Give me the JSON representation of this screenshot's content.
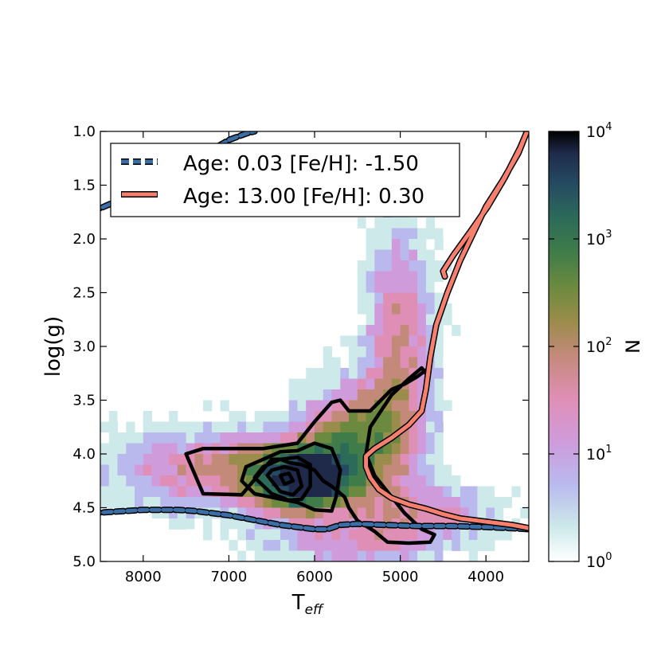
{
  "chart_data": {
    "type": "heatmap",
    "title": "",
    "xlabel_main": "T",
    "xlabel_sub": "eff",
    "ylabel": "log(g)",
    "xlim": [
      8500,
      3500
    ],
    "ylim": [
      5.0,
      1.0
    ],
    "y_inverted": true,
    "x_inverted": true,
    "x_ticks": [
      "8000",
      "7000",
      "6000",
      "5000",
      "4000"
    ],
    "x_tick_values": [
      8000,
      7000,
      6000,
      5000,
      4000
    ],
    "y_ticks": [
      "1.0",
      "1.5",
      "2.0",
      "2.5",
      "3.0",
      "3.5",
      "4.0",
      "4.5",
      "5.0"
    ],
    "y_tick_values": [
      1.0,
      1.5,
      2.0,
      2.5,
      3.0,
      3.5,
      4.0,
      4.5,
      5.0
    ],
    "grid": false,
    "legend_placement": "upper-left",
    "colorbar": {
      "label": "N",
      "scale": "log",
      "range": [
        1,
        10000
      ],
      "tick_base": "10",
      "tick_exponents": [
        "0",
        "1",
        "2",
        "3",
        "4"
      ],
      "colormap": [
        "#ffffff",
        "#cde9ea",
        "#b9b9ee",
        "#cf9bdb",
        "#df8fb5",
        "#c38a7a",
        "#9a8c4a",
        "#6b8a3f",
        "#3f7c49",
        "#2c6a5a",
        "#254a62",
        "#1f2a4a",
        "#000000"
      ]
    },
    "density_regions": [
      {
        "name": "main-sequence-turnoff-core",
        "teff_range": [
          6600,
          5600
        ],
        "logg_range": [
          3.9,
          4.5
        ],
        "level": "1000+"
      },
      {
        "name": "subgiant-branch",
        "teff_range": [
          5900,
          4800
        ],
        "logg_range": [
          3.3,
          4.0
        ],
        "level": "100-1000"
      },
      {
        "name": "red-giant-branch",
        "teff_range": [
          5400,
          4500
        ],
        "logg_range": [
          1.8,
          3.3
        ],
        "level": "10-100"
      },
      {
        "name": "hot-dwarfs",
        "teff_range": [
          8500,
          6800
        ],
        "logg_range": [
          3.8,
          4.6
        ],
        "level": "1-100"
      }
    ],
    "series": [
      {
        "name": "Age: 0.03 [Fe/H]: -1.50",
        "color": "#3b6ea5",
        "style": "dashed",
        "segments": [
          {
            "teff": [
              8600,
              8400,
              8150,
              7900,
              7650,
              7400,
              7200,
              7000,
              6800,
              6700
            ],
            "logg": [
              1.75,
              1.68,
              1.58,
              1.48,
              1.38,
              1.27,
              1.17,
              1.08,
              1.02,
              1.0
            ]
          },
          {
            "teff": [
              8600,
              8400,
              8200,
              8000,
              7800,
              7600,
              7400,
              7200,
              7000,
              6800,
              6600,
              6400,
              6200,
              6000,
              5850,
              5700,
              5500,
              5200,
              4800,
              4400,
              4000,
              3700,
              3500
            ],
            "logg": [
              4.55,
              4.54,
              4.53,
              4.52,
              4.52,
              4.52,
              4.53,
              4.55,
              4.57,
              4.6,
              4.63,
              4.66,
              4.68,
              4.7,
              4.7,
              4.66,
              4.65,
              4.66,
              4.67,
              4.67,
              4.68,
              4.69,
              4.7
            ]
          }
        ]
      },
      {
        "name": "Age: 13.00 [Fe/H]: 0.30",
        "color": "#f77f6e",
        "style": "solid",
        "segments": [
          {
            "teff": [
              3500,
              3700,
              3900,
              4100,
              4300,
              4500,
              4700,
              4900,
              5100,
              5250,
              5350,
              5400,
              5400,
              5300,
              5100,
              4900,
              4750,
              4700,
              4650,
              4580,
              4450,
              4300,
              4150,
              4000,
              3800,
              3620,
              3520,
              3600,
              3780,
              3980,
              4180,
              4380,
              4500,
              4480
            ],
            "logg": [
              4.69,
              4.66,
              4.64,
              4.62,
              4.6,
              4.56,
              4.51,
              4.47,
              4.41,
              4.33,
              4.22,
              4.12,
              4.02,
              3.95,
              3.85,
              3.73,
              3.6,
              3.4,
              3.1,
              2.8,
              2.5,
              2.2,
              1.95,
              1.7,
              1.45,
              1.2,
              1.0,
              1.15,
              1.43,
              1.7,
              1.93,
              2.15,
              2.3,
              2.35
            ]
          }
        ]
      }
    ],
    "contours": [
      {
        "level": "outer",
        "teff": [
          6500,
          6850,
          7300,
          7500,
          7300,
          6600,
          6200,
          6000,
          5800,
          5700,
          5600,
          5350,
          5100,
          4950,
          4800,
          4700,
          4700,
          4750,
          4900,
          5100,
          5350,
          5400,
          5300,
          5100,
          4950,
          4750,
          4600,
          4650,
          4900,
          5150,
          5300,
          5500,
          5600,
          5650,
          5800,
          5900,
          6000,
          6150,
          6300,
          6400,
          6500
        ],
        "logg": [
          4.05,
          4.38,
          4.37,
          4.0,
          3.95,
          3.95,
          3.9,
          3.7,
          3.52,
          3.5,
          3.6,
          3.6,
          3.4,
          3.35,
          3.28,
          3.22,
          3.25,
          3.2,
          3.3,
          3.45,
          3.75,
          4.0,
          4.2,
          4.4,
          4.55,
          4.7,
          4.75,
          4.82,
          4.83,
          4.82,
          4.72,
          4.62,
          4.5,
          4.4,
          4.3,
          4.25,
          4.15,
          4.1,
          4.08,
          4.05,
          4.05
        ]
      },
      {
        "level": "mid",
        "teff": [
          6800,
          6600,
          6400,
          6200,
          6000,
          5800,
          5700,
          5750,
          5800,
          6000,
          6200,
          6400,
          6700,
          6850,
          6800
        ],
        "logg": [
          4.12,
          4.05,
          3.98,
          3.97,
          3.9,
          3.95,
          4.15,
          4.4,
          4.53,
          4.52,
          4.45,
          4.42,
          4.37,
          4.25,
          4.12
        ]
      },
      {
        "level": "inner",
        "teff": [
          6600,
          6400,
          6200,
          6050,
          6050,
          6150,
          6300,
          6500,
          6700,
          6600
        ],
        "logg": [
          4.12,
          4.05,
          4.03,
          4.1,
          4.3,
          4.42,
          4.43,
          4.37,
          4.22,
          4.12
        ]
      },
      {
        "level": "core",
        "teff": [
          6500,
          6350,
          6200,
          6150,
          6250,
          6400,
          6550,
          6500
        ],
        "logg": [
          4.15,
          4.12,
          4.15,
          4.3,
          4.38,
          4.35,
          4.2,
          4.15
        ]
      },
      {
        "level": "peak",
        "teff": [
          6400,
          6300,
          6250,
          6350,
          6400
        ],
        "logg": [
          4.2,
          4.18,
          4.25,
          4.28,
          4.2
        ]
      }
    ]
  }
}
